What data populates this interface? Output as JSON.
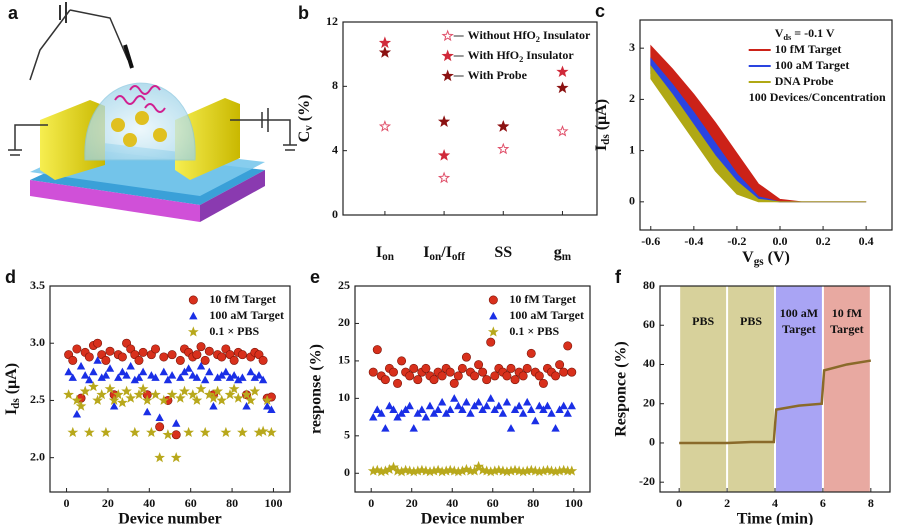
{
  "chart_data": [
    {
      "type": "illustration",
      "panel": "a"
    },
    {
      "type": "dot",
      "panel": "b",
      "ylabel": [
        "C",
        "v",
        " (%)"
      ],
      "categories": [
        [
          "I",
          "on"
        ],
        [
          "I",
          "on",
          "/I",
          "off"
        ],
        [
          "SS"
        ],
        [
          "g",
          "m"
        ]
      ],
      "ylim": [
        0,
        12
      ],
      "yticks": [
        0,
        4,
        8,
        12
      ],
      "legend": "upper right",
      "series": [
        {
          "name": [
            "Without HfO",
            "2",
            " Insulator"
          ],
          "color": "#e0506a",
          "filled": false,
          "values": [
            5.5,
            2.3,
            4.1,
            5.2
          ]
        },
        {
          "name": [
            "With HfO",
            "2",
            " Insulator"
          ],
          "color": "#d02a3a",
          "filled": true,
          "values": [
            10.7,
            3.7,
            5.5,
            8.9
          ]
        },
        {
          "name": [
            "With Probe"
          ],
          "color": "#8b1212",
          "filled": true,
          "values": [
            10.1,
            5.8,
            5.5,
            7.9
          ]
        }
      ]
    },
    {
      "type": "band",
      "panel": "c",
      "xlabel": [
        "V",
        "gs",
        " (V)"
      ],
      "ylabel": [
        "I",
        "ds",
        " (μA)"
      ],
      "annotations": [
        [
          "V",
          "ds",
          " = -0.1 V"
        ],
        "100 Devices/Concentration"
      ],
      "x": [
        -0.6,
        -0.5,
        -0.4,
        -0.3,
        -0.2,
        -0.1,
        0,
        0.1,
        0.2,
        0.3,
        0.4
      ],
      "xlim": [
        -0.65,
        0.52
      ],
      "xticks": [
        -0.6,
        -0.4,
        -0.2,
        {
          "value": 0,
          "label": "0.0"
        },
        0.2,
        0.4
      ],
      "ylim": [
        -0.55,
        3.55
      ],
      "yticks": [
        0,
        1,
        2,
        3
      ],
      "legend": "upper right",
      "series": [
        {
          "name": "10 fM Target",
          "color": "#cc2218",
          "upper": [
            3.05,
            2.6,
            2.1,
            1.55,
            0.95,
            0.35,
            0.05,
            0,
            0,
            0,
            0
          ],
          "lower": [
            2.6,
            2.1,
            1.6,
            1.0,
            0.45,
            0.05,
            0,
            0,
            0,
            0,
            0
          ]
        },
        {
          "name": "100 aM Target",
          "color": "#2a44e0",
          "upper": [
            2.8,
            2.3,
            1.75,
            1.15,
            0.55,
            0.1,
            0,
            0,
            0,
            0,
            0
          ],
          "lower": [
            2.5,
            2.0,
            1.4,
            0.8,
            0.3,
            0.02,
            0,
            0,
            0,
            0,
            0
          ]
        },
        {
          "name": "DNA Probe",
          "color": "#b0a814",
          "upper": [
            2.65,
            2.1,
            1.5,
            0.9,
            0.4,
            0.05,
            0,
            0,
            0,
            0,
            0
          ],
          "lower": [
            2.4,
            1.8,
            1.2,
            0.6,
            0.15,
            0,
            0,
            0,
            0,
            0,
            0
          ]
        }
      ]
    },
    {
      "type": "scatter",
      "panel": "d",
      "xlabel": "Device number",
      "ylabel": [
        "I",
        "ds",
        " (μA)"
      ],
      "xlim": [
        -8,
        108
      ],
      "xticks": [
        0,
        20,
        40,
        60,
        80,
        100
      ],
      "ylim": [
        1.7,
        3.5
      ],
      "yticks": [
        {
          "value": 2,
          "label": "2.0"
        },
        2.5,
        {
          "value": 3,
          "label": "3.0"
        },
        3.5
      ],
      "legend": "upper right",
      "x": [
        1,
        3,
        5,
        7,
        9,
        11,
        13,
        15,
        17,
        19,
        21,
        23,
        25,
        27,
        29,
        31,
        33,
        35,
        37,
        39,
        41,
        43,
        45,
        47,
        49,
        51,
        53,
        55,
        57,
        59,
        61,
        63,
        65,
        67,
        69,
        71,
        73,
        75,
        77,
        79,
        81,
        83,
        85,
        87,
        89,
        91,
        93,
        95,
        97,
        99
      ],
      "series": [
        {
          "name": "10 fM Target",
          "color": "#d8301c",
          "marker": "sphere",
          "values": [
            2.9,
            2.85,
            2.95,
            2.52,
            2.92,
            2.88,
            2.98,
            3.0,
            2.9,
            2.85,
            2.93,
            2.55,
            2.9,
            2.88,
            3.0,
            2.95,
            2.9,
            2.85,
            2.92,
            2.55,
            2.9,
            2.95,
            2.27,
            2.88,
            2.5,
            2.9,
            2.2,
            2.85,
            2.95,
            2.92,
            2.88,
            2.9,
            2.97,
            2.85,
            2.93,
            2.55,
            2.9,
            2.88,
            2.95,
            2.9,
            2.85,
            2.92,
            2.9,
            2.55,
            2.88,
            2.92,
            2.9,
            2.85,
            2.52,
            2.53
          ]
        },
        {
          "name": "100 aM Target",
          "color": "#1a2fe6",
          "marker": "triangle",
          "values": [
            2.75,
            2.7,
            2.38,
            2.8,
            2.72,
            2.68,
            2.75,
            2.85,
            2.7,
            2.72,
            2.78,
            2.45,
            2.7,
            2.75,
            2.72,
            2.8,
            2.68,
            2.7,
            2.75,
            2.4,
            2.72,
            2.7,
            2.35,
            2.75,
            2.68,
            2.72,
            2.3,
            2.7,
            2.75,
            2.78,
            2.72,
            2.7,
            2.8,
            2.68,
            2.75,
            2.45,
            2.7,
            2.72,
            2.75,
            2.7,
            2.72,
            2.68,
            2.7,
            2.45,
            2.75,
            2.7,
            2.72,
            2.68,
            2.45,
            2.42
          ]
        },
        {
          "name": "0.1 × PBS",
          "color": "#b8a81c",
          "marker": "star",
          "values": [
            2.55,
            2.22,
            2.5,
            2.45,
            2.58,
            2.22,
            2.62,
            2.5,
            2.55,
            2.22,
            2.6,
            2.5,
            2.55,
            2.48,
            2.58,
            2.52,
            2.22,
            2.55,
            2.6,
            2.5,
            2.22,
            2.55,
            2.0,
            2.5,
            2.2,
            2.55,
            2.0,
            2.52,
            2.58,
            2.22,
            2.55,
            2.5,
            2.6,
            2.22,
            2.55,
            2.52,
            2.58,
            2.5,
            2.22,
            2.55,
            2.6,
            2.52,
            2.22,
            2.55,
            2.5,
            2.58,
            2.22,
            2.23,
            2.5,
            2.22
          ]
        }
      ]
    },
    {
      "type": "scatter",
      "panel": "e",
      "xlabel": "Device number",
      "ylabel": "response (%)",
      "xlim": [
        -8,
        108
      ],
      "xticks": [
        0,
        20,
        40,
        60,
        80,
        100
      ],
      "ylim": [
        -2.5,
        25
      ],
      "yticks": [
        0,
        5,
        10,
        15,
        20,
        25
      ],
      "legend": "upper right",
      "x": [
        1,
        3,
        5,
        7,
        9,
        11,
        13,
        15,
        17,
        19,
        21,
        23,
        25,
        27,
        29,
        31,
        33,
        35,
        37,
        39,
        41,
        43,
        45,
        47,
        49,
        51,
        53,
        55,
        57,
        59,
        61,
        63,
        65,
        67,
        69,
        71,
        73,
        75,
        77,
        79,
        81,
        83,
        85,
        87,
        89,
        91,
        93,
        95,
        97,
        99
      ],
      "series": [
        {
          "name": "10 fM Target",
          "color": "#d8301c",
          "marker": "sphere",
          "values": [
            13.5,
            16.5,
            13,
            12.5,
            14,
            13.5,
            12,
            15,
            13.5,
            13,
            14,
            12.5,
            13.5,
            14,
            13,
            12.5,
            13.5,
            13,
            14,
            13.5,
            12,
            13,
            14,
            15.5,
            13.5,
            13,
            14.5,
            13.5,
            12.5,
            17.5,
            13,
            14,
            13.5,
            13,
            14,
            12.5,
            13.5,
            13,
            14,
            16,
            13.5,
            13,
            12,
            14,
            13.5,
            13,
            14.5,
            13.5,
            17,
            13.5
          ]
        },
        {
          "name": "100 aM Target",
          "color": "#1a2fe6",
          "marker": "triangle",
          "values": [
            7.5,
            8.5,
            8,
            6,
            9,
            8.5,
            7.5,
            8,
            8.5,
            9,
            6,
            8,
            8.5,
            7.5,
            9,
            8,
            8.5,
            9.5,
            8,
            8.5,
            10,
            9,
            8.5,
            9.5,
            8,
            9,
            9.5,
            8.5,
            9,
            10,
            8.5,
            9,
            8,
            9.5,
            6,
            8.5,
            9,
            8,
            9.5,
            8.5,
            7,
            9,
            8.5,
            9,
            8,
            6,
            8.5,
            9,
            8,
            9
          ]
        },
        {
          "name": "0.1 × PBS",
          "color": "#b8a81c",
          "marker": "star",
          "line": true,
          "values": [
            0.3,
            0.4,
            0.2,
            0.3,
            0.5,
            0.8,
            0.3,
            0.2,
            0.4,
            0.3,
            0.2,
            0.3,
            0.4,
            0.3,
            0.2,
            0.3,
            0.4,
            0.2,
            0.3,
            0.4,
            0.3,
            0.2,
            0.3,
            0.5,
            0.3,
            0.3,
            0.9,
            0.4,
            0.3,
            0.2,
            0.3,
            0.4,
            0.3,
            0.2,
            0.3,
            0.4,
            0.3,
            0.2,
            0.3,
            0.4,
            0.3,
            0.2,
            0.3,
            0.4,
            0.3,
            0.2,
            0.3,
            0.4,
            0.3,
            0.3
          ]
        }
      ]
    },
    {
      "type": "line",
      "panel": "f",
      "xlabel": "Time (min)",
      "ylabel": "Responce (%)",
      "xlim": [
        -0.8,
        8.8
      ],
      "xticks": [
        0,
        2,
        4,
        6,
        8
      ],
      "ylim": [
        -25,
        80
      ],
      "yticks": [
        -20,
        0,
        20,
        40,
        60,
        80
      ],
      "regions": [
        {
          "x": [
            0,
            2
          ],
          "label": [
            "PBS"
          ],
          "color": "#c9c27a"
        },
        {
          "x": [
            2,
            4
          ],
          "label": [
            "PBS"
          ],
          "color": "#c9c27a"
        },
        {
          "x": [
            4,
            6
          ],
          "label": [
            "100 aM",
            "Target"
          ],
          "color": "#8c86f0"
        },
        {
          "x": [
            6,
            8
          ],
          "label": [
            "10 fM",
            "Target"
          ],
          "color": "#e08c82"
        }
      ],
      "x": [
        0,
        1,
        2,
        3,
        3.95,
        4.05,
        5,
        5.95,
        6.05,
        7,
        8
      ],
      "series": [
        {
          "color": "#8a6a2a",
          "values": [
            0,
            0,
            0,
            0.5,
            0.5,
            17,
            19,
            20,
            37,
            40,
            42
          ]
        }
      ]
    }
  ]
}
